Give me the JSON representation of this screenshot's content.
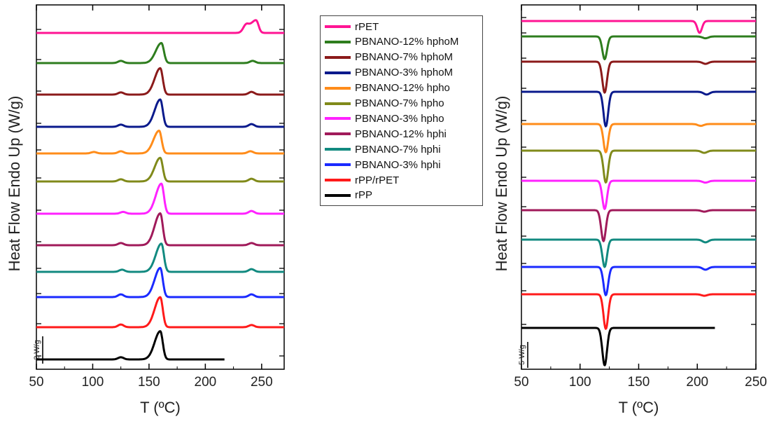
{
  "chart_data": [
    {
      "type": "line",
      "panel": "heating",
      "xlabel": "T (ºC)",
      "ylabel": "Heat Flow Endo Up (W/g)",
      "xlim": [
        50,
        270
      ],
      "x_ticks": [
        50,
        100,
        150,
        200,
        250
      ],
      "y_ticks_visible": false,
      "scale_bar_label": "2 W/g",
      "grid": false,
      "peak_type": "endothermic",
      "series": [
        {
          "name": "rPET",
          "x_range": [
            50,
            270
          ],
          "peaks": [
            {
              "x": 236,
              "height": 0.35
            },
            {
              "x": 245,
              "height": 0.7
            }
          ]
        },
        {
          "name": "PBNANO-12% hphoM",
          "x_range": [
            50,
            270
          ],
          "peaks": [
            {
              "x": 125,
              "height": 0.12
            },
            {
              "x": 161,
              "height": 1.1
            },
            {
              "x": 242,
              "height": 0.12
            }
          ]
        },
        {
          "name": "PBNANO-7% hphoM",
          "x_range": [
            50,
            270
          ],
          "peaks": [
            {
              "x": 125,
              "height": 0.12
            },
            {
              "x": 160,
              "height": 1.45
            },
            {
              "x": 241,
              "height": 0.15
            }
          ]
        },
        {
          "name": "PBNANO-3% hphoM",
          "x_range": [
            50,
            270
          ],
          "peaks": [
            {
              "x": 125,
              "height": 0.12
            },
            {
              "x": 160,
              "height": 1.5
            },
            {
              "x": 241,
              "height": 0.15
            }
          ]
        },
        {
          "name": "PBNANO-12% hpho",
          "x_range": [
            50,
            270
          ],
          "peaks": [
            {
              "x": 101,
              "height": 0.08
            },
            {
              "x": 125,
              "height": 0.12
            },
            {
              "x": 159,
              "height": 1.25
            },
            {
              "x": 240,
              "height": 0.12
            }
          ]
        },
        {
          "name": "PBNANO-7% hpho",
          "x_range": [
            50,
            270
          ],
          "peaks": [
            {
              "x": 125,
              "height": 0.12
            },
            {
              "x": 160,
              "height": 1.3
            },
            {
              "x": 241,
              "height": 0.15
            }
          ]
        },
        {
          "name": "PBNANO-3% hpho",
          "x_range": [
            50,
            270
          ],
          "peaks": [
            {
              "x": 127,
              "height": 0.1
            },
            {
              "x": 161,
              "height": 1.65
            },
            {
              "x": 241,
              "height": 0.15
            }
          ]
        },
        {
          "name": "PBNANO-12% hphi",
          "x_range": [
            50,
            270
          ],
          "peaks": [
            {
              "x": 125,
              "height": 0.12
            },
            {
              "x": 160,
              "height": 1.75
            },
            {
              "x": 241,
              "height": 0.12
            }
          ]
        },
        {
          "name": "PBNANO-7% hphi",
          "x_range": [
            50,
            270
          ],
          "peaks": [
            {
              "x": 126,
              "height": 0.12
            },
            {
              "x": 161,
              "height": 1.55
            },
            {
              "x": 241,
              "height": 0.15
            }
          ]
        },
        {
          "name": "PBNANO-3% hphi",
          "x_range": [
            50,
            270
          ],
          "peaks": [
            {
              "x": 125,
              "height": 0.15
            },
            {
              "x": 160,
              "height": 1.6
            },
            {
              "x": 241,
              "height": 0.15
            }
          ]
        },
        {
          "name": "rPP/rPET",
          "x_range": [
            50,
            270
          ],
          "peaks": [
            {
              "x": 125,
              "height": 0.15
            },
            {
              "x": 160,
              "height": 1.65
            },
            {
              "x": 241,
              "height": 0.12
            }
          ]
        },
        {
          "name": "rPP",
          "x_range": [
            50,
            217
          ],
          "peaks": [
            {
              "x": 125,
              "height": 0.12
            },
            {
              "x": 160,
              "height": 1.55
            }
          ]
        }
      ]
    },
    {
      "type": "line",
      "panel": "cooling",
      "xlabel": "T (ºC)",
      "ylabel": "Heat Flow Endo Up (W/g)",
      "xlim": [
        50,
        250
      ],
      "x_ticks": [
        50,
        100,
        150,
        200,
        250
      ],
      "y_ticks_visible": false,
      "scale_bar_label": "5 W/g",
      "grid": false,
      "peak_type": "exothermic",
      "series": [
        {
          "name": "rPET",
          "x_range": [
            50,
            250
          ],
          "peaks": [
            {
              "x": 202,
              "height": 0.65
            }
          ]
        },
        {
          "name": "PBNANO-12% hphoM",
          "x_range": [
            50,
            250
          ],
          "peaks": [
            {
              "x": 121,
              "height": 1.25
            },
            {
              "x": 207,
              "height": 0.1
            }
          ]
        },
        {
          "name": "PBNANO-7% hphoM",
          "x_range": [
            50,
            250
          ],
          "peaks": [
            {
              "x": 121,
              "height": 1.7
            },
            {
              "x": 207,
              "height": 0.12
            }
          ]
        },
        {
          "name": "PBNANO-3% hphoM",
          "x_range": [
            50,
            250
          ],
          "peaks": [
            {
              "x": 122,
              "height": 1.9
            },
            {
              "x": 208,
              "height": 0.15
            }
          ]
        },
        {
          "name": "PBNANO-12% hpho",
          "x_range": [
            50,
            250
          ],
          "peaks": [
            {
              "x": 122,
              "height": 1.55
            },
            {
              "x": 203,
              "height": 0.1
            }
          ]
        },
        {
          "name": "PBNANO-7% hpho",
          "x_range": [
            50,
            250
          ],
          "peaks": [
            {
              "x": 122,
              "height": 1.75
            },
            {
              "x": 206,
              "height": 0.12
            }
          ]
        },
        {
          "name": "PBNANO-3% hpho",
          "x_range": [
            50,
            250
          ],
          "peaks": [
            {
              "x": 121,
              "height": 1.55
            },
            {
              "x": 207,
              "height": 0.1
            }
          ]
        },
        {
          "name": "PBNANO-12% hphi",
          "x_range": [
            50,
            250
          ],
          "peaks": [
            {
              "x": 120,
              "height": 1.7
            },
            {
              "x": 206,
              "height": 0.08
            }
          ]
        },
        {
          "name": "PBNANO-7% hphi",
          "x_range": [
            50,
            250
          ],
          "peaks": [
            {
              "x": 121,
              "height": 1.5
            },
            {
              "x": 207,
              "height": 0.15
            }
          ]
        },
        {
          "name": "PBNANO-3% hphi",
          "x_range": [
            50,
            250
          ],
          "peaks": [
            {
              "x": 122,
              "height": 1.55
            },
            {
              "x": 207,
              "height": 0.15
            }
          ]
        },
        {
          "name": "rPP/rPET",
          "x_range": [
            50,
            250
          ],
          "peaks": [
            {
              "x": 122,
              "height": 1.9
            },
            {
              "x": 206,
              "height": 0.08
            }
          ]
        },
        {
          "name": "rPP",
          "x_range": [
            50,
            215
          ],
          "peaks": [
            {
              "x": 121,
              "height": 2.05
            }
          ]
        }
      ]
    }
  ],
  "legend": {
    "placement": "center",
    "items": [
      {
        "label": "rPET",
        "color": "#ff1493"
      },
      {
        "label": "PBNANO-12% hphoM",
        "color": "#2e7d1e"
      },
      {
        "label": "PBNANO-7% hphoM",
        "color": "#8b1a1a"
      },
      {
        "label": "PBNANO-3% hphoM",
        "color": "#0a1a8c"
      },
      {
        "label": "PBNANO-12% hpho",
        "color": "#ff8c1a"
      },
      {
        "label": "PBNANO-7% hpho",
        "color": "#808a1a"
      },
      {
        "label": "PBNANO-3% hpho",
        "color": "#ff22ff"
      },
      {
        "label": "PBNANO-12% hphi",
        "color": "#a01a5a"
      },
      {
        "label": "PBNANO-7% hphi",
        "color": "#128a80"
      },
      {
        "label": "PBNANO-3% hphi",
        "color": "#1a2aff"
      },
      {
        "label": "rPP/rPET",
        "color": "#ff1a1a"
      },
      {
        "label": "rPP",
        "color": "#000000"
      }
    ]
  }
}
